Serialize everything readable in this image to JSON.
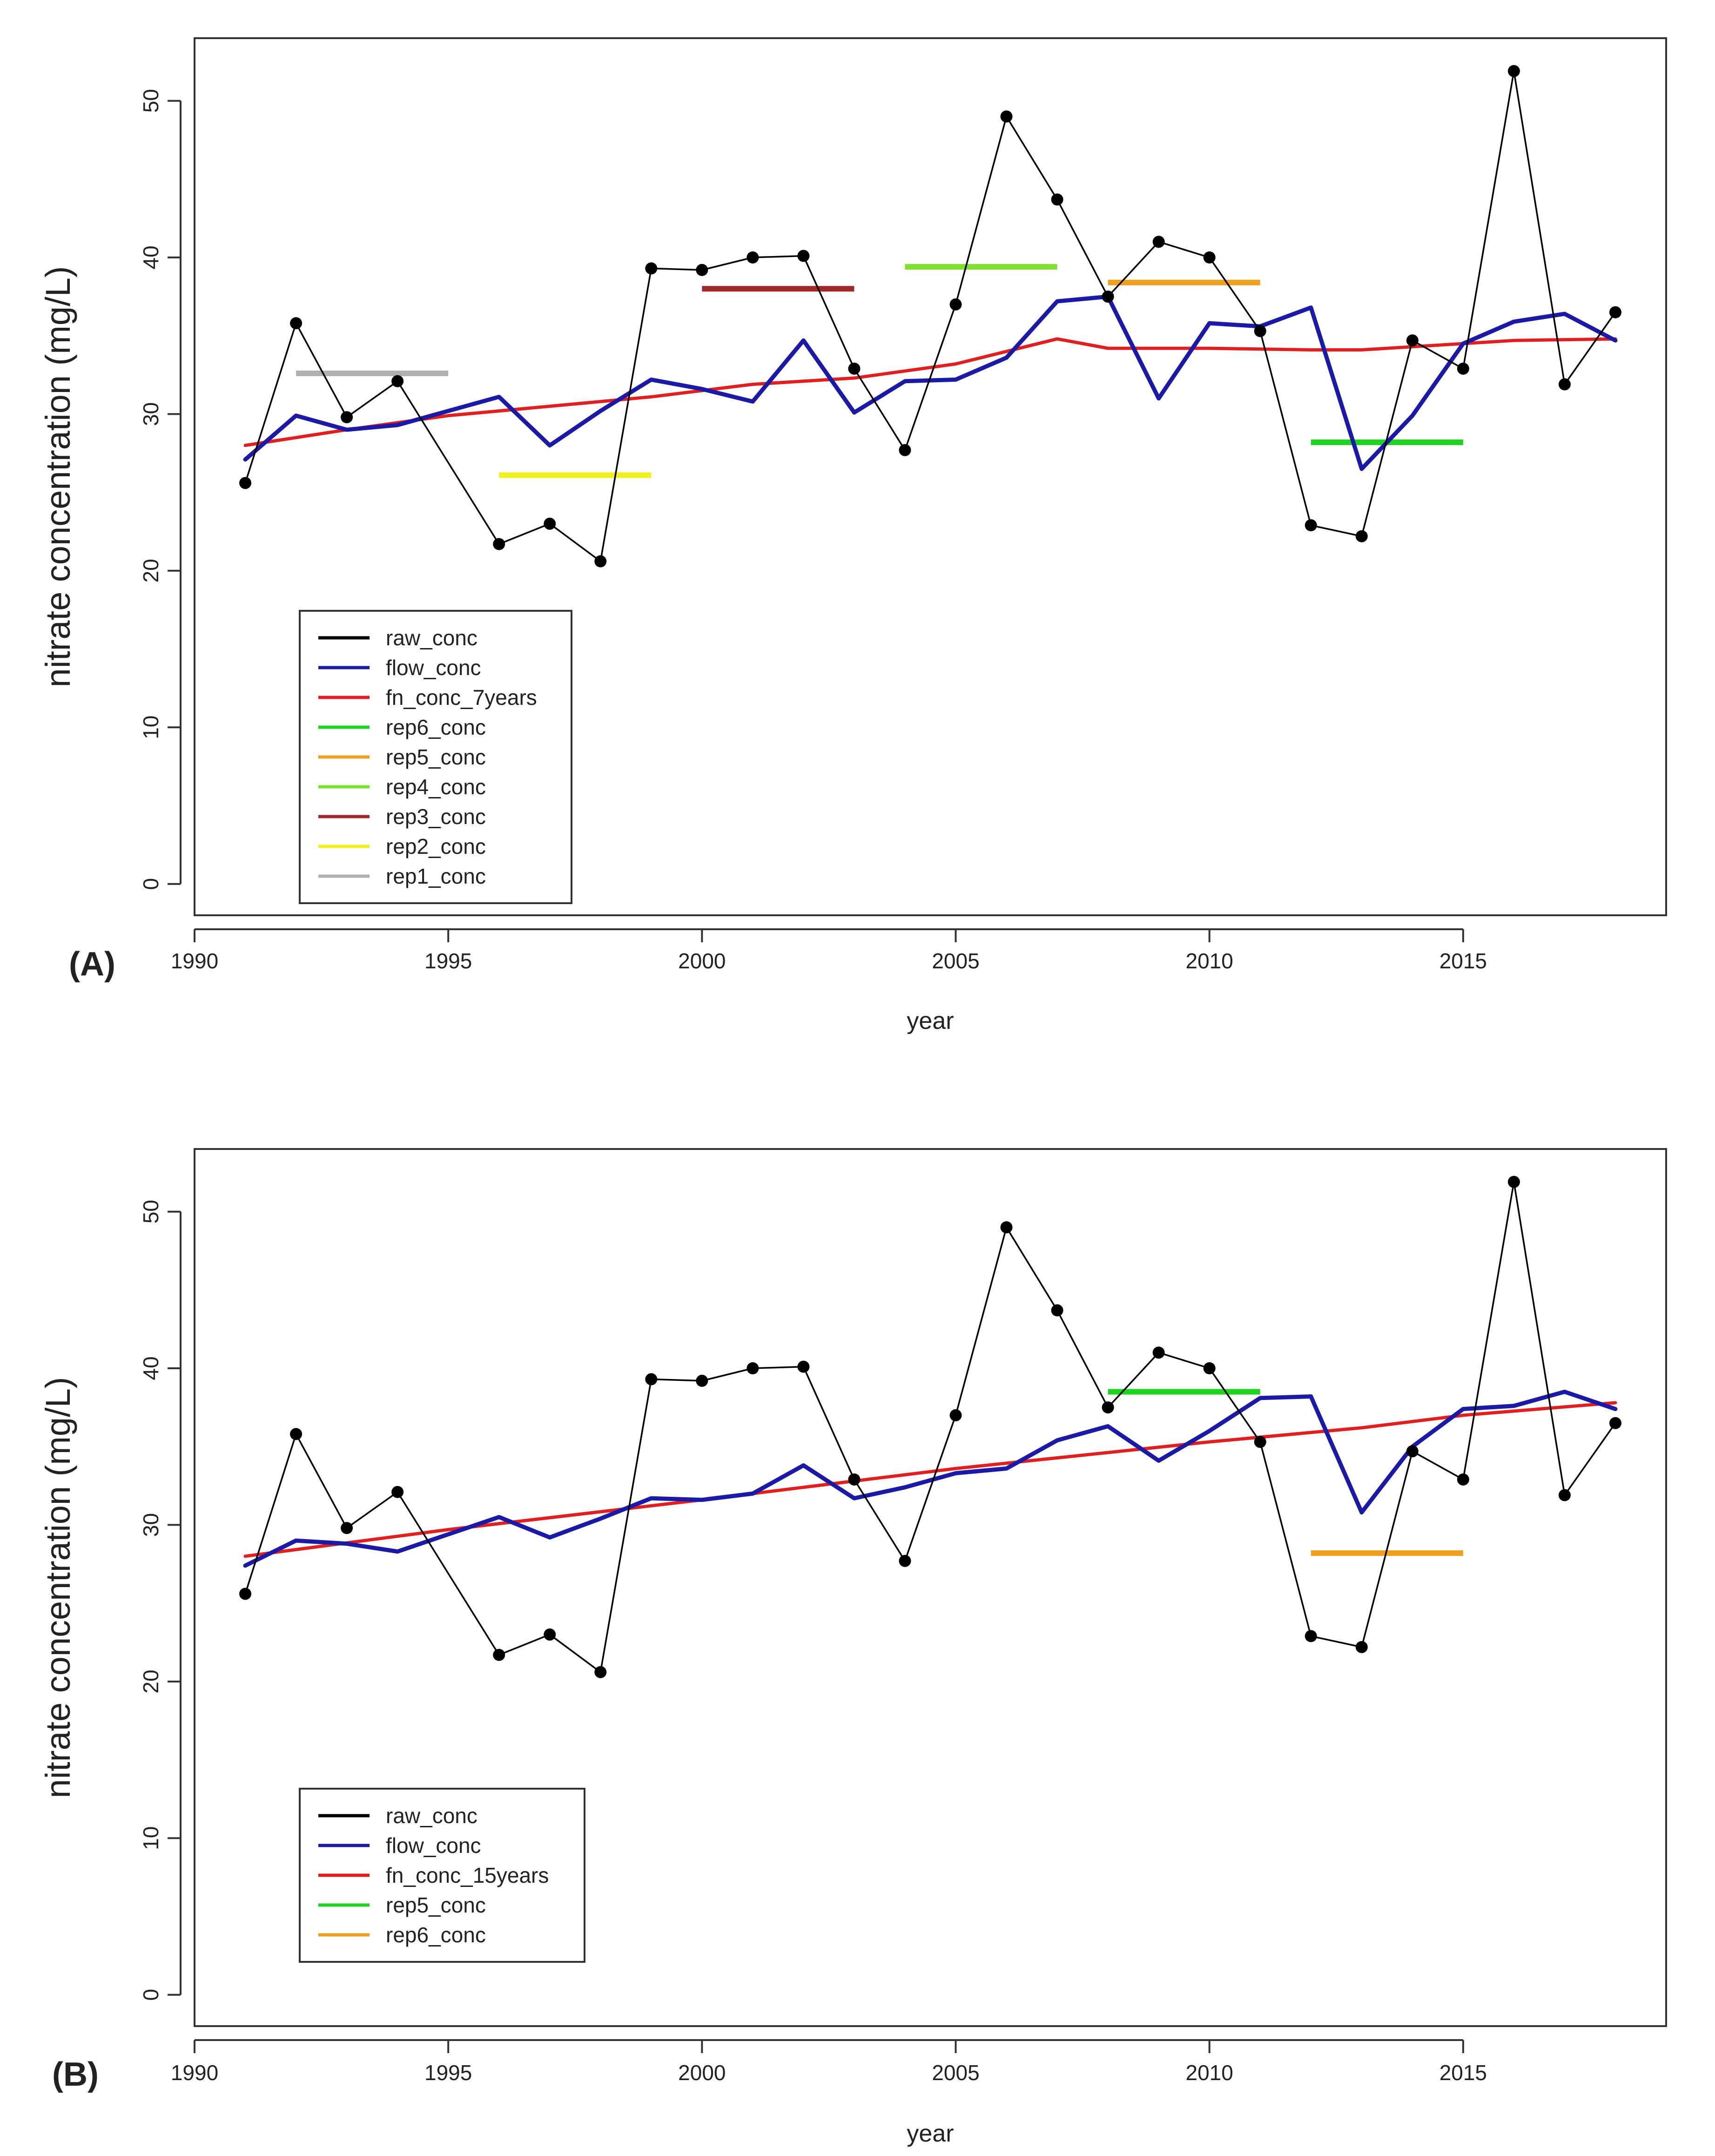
{
  "chart_data": [
    {
      "type": "line",
      "panel_label": "(A)",
      "xlabel": "year",
      "ylabel": "nitrate concentration (mg/L)",
      "xlim": [
        1990,
        2019
      ],
      "ylim": [
        -2,
        54
      ],
      "xticks": [
        1990,
        1995,
        2000,
        2005,
        2010,
        2015
      ],
      "yticks": [
        0,
        10,
        20,
        30,
        40,
        50
      ],
      "legend_position": "bottom-left",
      "series": [
        {
          "name": "raw_conc",
          "kind": "raw",
          "color": "#000000",
          "x": [
            1991,
            1992,
            1993,
            1994,
            1996,
            1997,
            1998,
            1999,
            2000,
            2001,
            2002,
            2003,
            2004,
            2005,
            2006,
            2007,
            2008,
            2009,
            2010,
            2011,
            2012,
            2013,
            2014,
            2015,
            2016,
            2017,
            2018
          ],
          "y": [
            25.6,
            35.8,
            29.8,
            32.1,
            21.7,
            23.0,
            20.6,
            39.3,
            39.2,
            40.0,
            40.1,
            32.9,
            27.7,
            37.0,
            49.0,
            43.7,
            37.5,
            41.0,
            40.0,
            35.3,
            22.9,
            22.2,
            34.7,
            32.9,
            51.9,
            31.9,
            36.5
          ]
        },
        {
          "name": "flow_conc",
          "kind": "flow",
          "color": "#1a1aa6",
          "x": [
            1991,
            1992,
            1993,
            1994,
            1995,
            1996,
            1997,
            1998,
            1999,
            2000,
            2001,
            2002,
            2003,
            2004,
            2005,
            2006,
            2007,
            2008,
            2009,
            2010,
            2011,
            2012,
            2013,
            2014,
            2015,
            2016,
            2017,
            2018
          ],
          "y": [
            27.1,
            29.9,
            29.0,
            29.3,
            30.2,
            31.1,
            28.0,
            30.2,
            32.2,
            31.6,
            30.8,
            34.7,
            30.1,
            32.1,
            32.2,
            33.6,
            37.2,
            37.5,
            31.0,
            35.8,
            35.6,
            36.8,
            26.5,
            29.9,
            34.5,
            35.9,
            36.4,
            34.7
          ]
        },
        {
          "name": "fn_conc_7years",
          "kind": "trend",
          "color": "#e02020",
          "x": [
            1991,
            1993,
            1995,
            1997,
            1999,
            2001,
            2003,
            2005,
            2007,
            2008,
            2010,
            2012,
            2013,
            2015,
            2016,
            2018
          ],
          "y": [
            28.0,
            29.0,
            29.9,
            30.5,
            31.1,
            31.9,
            32.3,
            33.2,
            34.8,
            34.2,
            34.2,
            34.1,
            34.1,
            34.5,
            34.7,
            34.8
          ]
        },
        {
          "name": "rep6_conc",
          "kind": "rep",
          "color": "#1fd41f",
          "x": [
            2012,
            2015
          ],
          "y": [
            28.2,
            28.2
          ]
        },
        {
          "name": "rep5_conc",
          "kind": "rep",
          "color": "#f0a020",
          "x": [
            2008,
            2011
          ],
          "y": [
            38.4,
            38.4
          ]
        },
        {
          "name": "rep4_conc",
          "kind": "rep",
          "color": "#80e030",
          "x": [
            2004,
            2007
          ],
          "y": [
            39.4,
            39.4
          ]
        },
        {
          "name": "rep3_conc",
          "kind": "rep",
          "color": "#a02828",
          "x": [
            2000,
            2003
          ],
          "y": [
            38.0,
            38.0
          ]
        },
        {
          "name": "rep2_conc",
          "kind": "rep",
          "color": "#f0f020",
          "x": [
            1996,
            1999
          ],
          "y": [
            26.1,
            26.1
          ]
        },
        {
          "name": "rep1_conc",
          "kind": "rep",
          "color": "#b0b0b0",
          "x": [
            1992,
            1995
          ],
          "y": [
            32.6,
            32.6
          ]
        }
      ]
    },
    {
      "type": "line",
      "panel_label": "(B)",
      "xlabel": "year",
      "ylabel": "nitrate concentration (mg/L)",
      "xlim": [
        1990,
        2019
      ],
      "ylim": [
        -2,
        54
      ],
      "xticks": [
        1990,
        1995,
        2000,
        2005,
        2010,
        2015
      ],
      "yticks": [
        0,
        10,
        20,
        30,
        40,
        50
      ],
      "legend_position": "bottom-left",
      "series": [
        {
          "name": "raw_conc",
          "kind": "raw",
          "color": "#000000",
          "x": [
            1991,
            1992,
            1993,
            1994,
            1996,
            1997,
            1998,
            1999,
            2000,
            2001,
            2002,
            2003,
            2004,
            2005,
            2006,
            2007,
            2008,
            2009,
            2010,
            2011,
            2012,
            2013,
            2014,
            2015,
            2016,
            2017,
            2018
          ],
          "y": [
            25.6,
            35.8,
            29.8,
            32.1,
            21.7,
            23.0,
            20.6,
            39.3,
            39.2,
            40.0,
            40.1,
            32.9,
            27.7,
            37.0,
            49.0,
            43.7,
            37.5,
            41.0,
            40.0,
            35.3,
            22.9,
            22.2,
            34.7,
            32.9,
            51.9,
            31.9,
            36.5
          ]
        },
        {
          "name": "flow_conc",
          "kind": "flow",
          "color": "#1a1aa6",
          "x": [
            1991,
            1992,
            1993,
            1994,
            1995,
            1996,
            1997,
            1998,
            1999,
            2000,
            2001,
            2002,
            2003,
            2004,
            2005,
            2006,
            2007,
            2008,
            2009,
            2010,
            2011,
            2012,
            2013,
            2014,
            2015,
            2016,
            2017,
            2018
          ],
          "y": [
            27.4,
            29.0,
            28.8,
            28.3,
            29.4,
            30.5,
            29.2,
            30.4,
            31.7,
            31.6,
            32.0,
            33.8,
            31.7,
            32.4,
            33.3,
            33.6,
            35.4,
            36.3,
            34.1,
            36.0,
            38.1,
            38.2,
            30.8,
            35.0,
            37.4,
            37.6,
            38.5,
            37.4
          ]
        },
        {
          "name": "fn_conc_15years",
          "kind": "trend",
          "color": "#e02020",
          "x": [
            1991,
            1995,
            2000,
            2005,
            2010,
            2013,
            2015,
            2018
          ],
          "y": [
            28.0,
            29.7,
            31.6,
            33.6,
            35.3,
            36.2,
            37.0,
            37.8
          ]
        },
        {
          "name": "rep5_conc",
          "kind": "rep",
          "color": "#1fd41f",
          "x": [
            2008,
            2011
          ],
          "y": [
            38.5,
            38.5
          ]
        },
        {
          "name": "rep6_conc",
          "kind": "rep",
          "color": "#f0a020",
          "x": [
            2012,
            2015
          ],
          "y": [
            28.2,
            28.2
          ]
        }
      ]
    }
  ]
}
